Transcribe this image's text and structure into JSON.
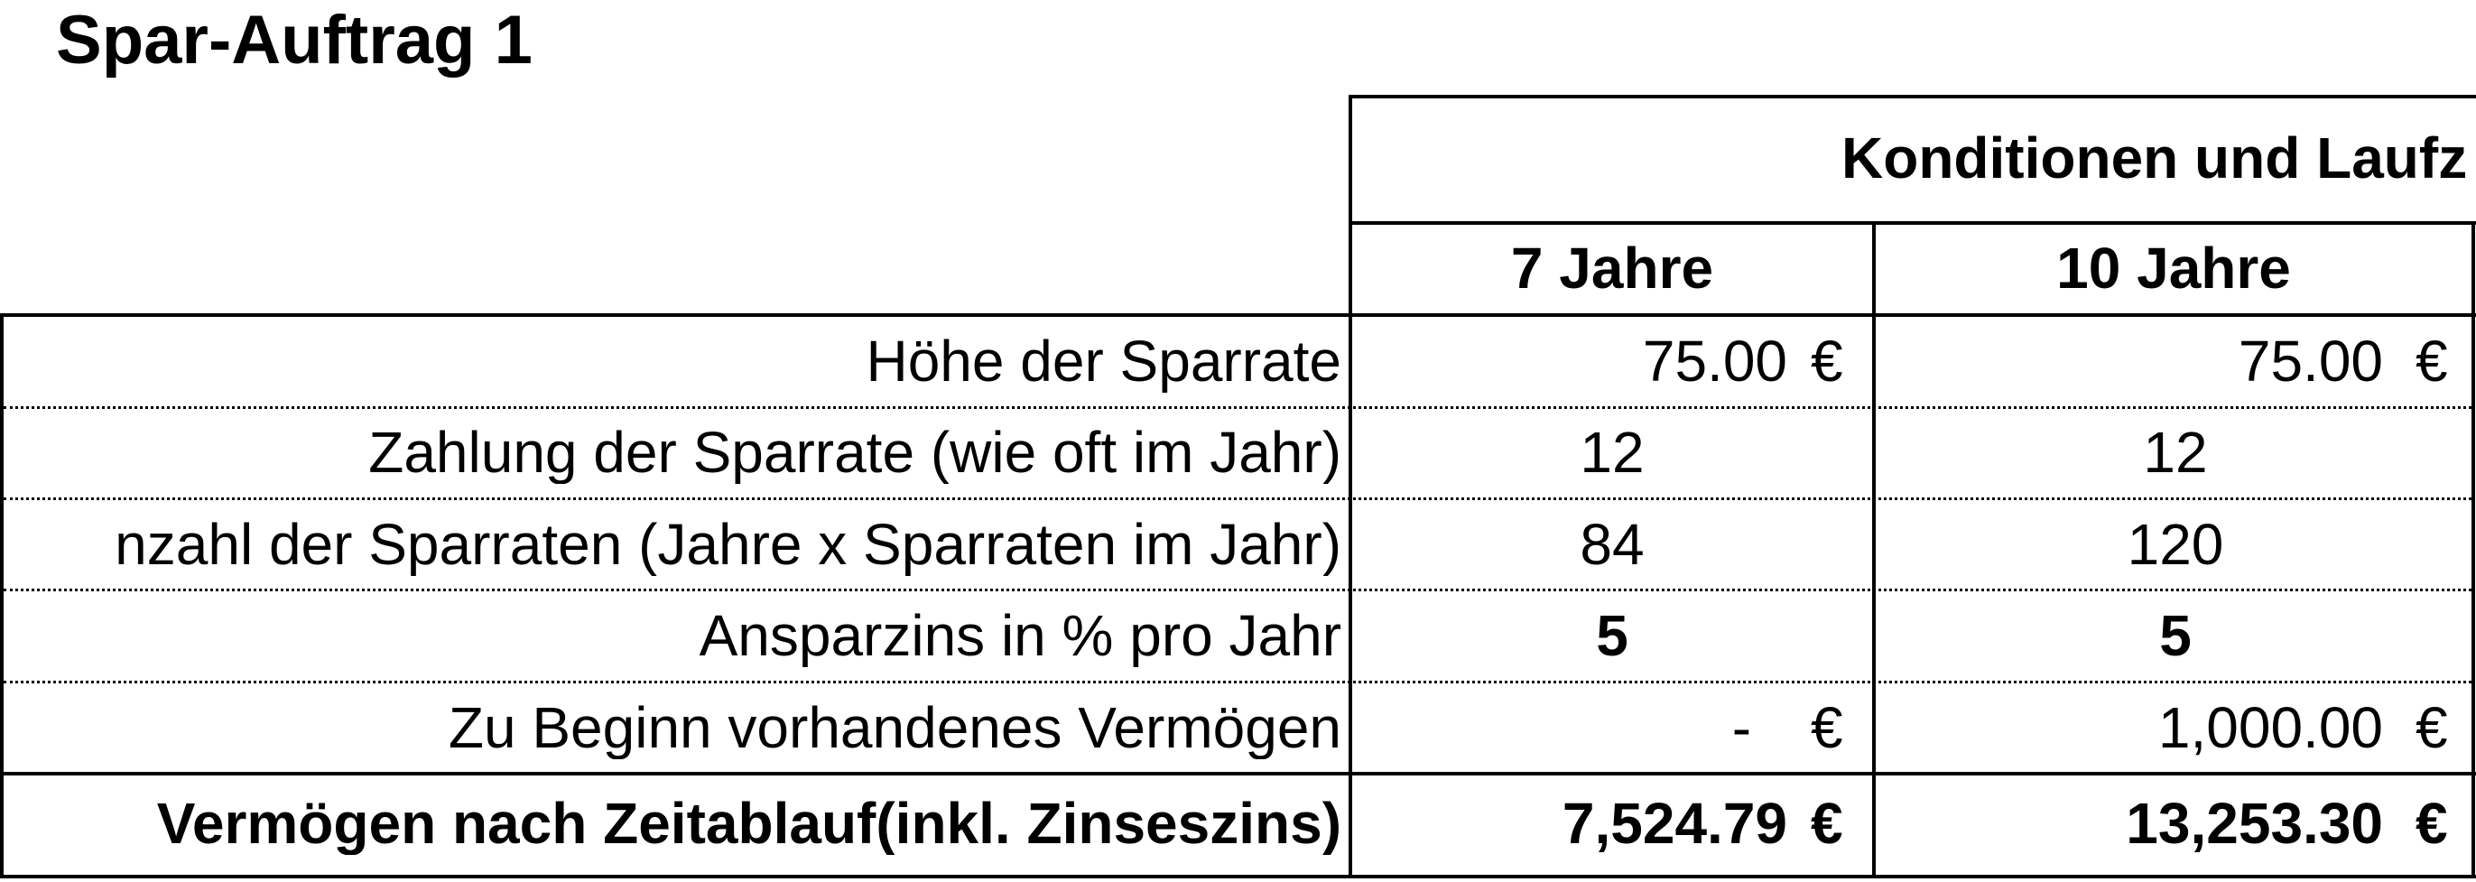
{
  "title": "Spar-Auftrag 1",
  "group_header": "Konditionen und Laufz",
  "columns": [
    "7 Jahre",
    "10 Jahre"
  ],
  "currency_symbol": "€",
  "rows": [
    {
      "label": "Höhe der Sparrate",
      "values": [
        "75.00",
        "75.00"
      ],
      "currency": true,
      "bold": false
    },
    {
      "label": "Zahlung der Sparrate (wie oft im Jahr)",
      "values": [
        "12",
        "12"
      ],
      "currency": false,
      "bold": false
    },
    {
      "label": "nzahl der Sparraten (Jahre x Sparraten im Jahr)",
      "values": [
        "84",
        "120"
      ],
      "currency": false,
      "bold": false
    },
    {
      "label": "Ansparzins in % pro Jahr",
      "values": [
        "5",
        "5"
      ],
      "currency": false,
      "bold": true
    },
    {
      "label": "Zu Beginn vorhandenes Vermögen",
      "values": [
        "-",
        "1,000.00"
      ],
      "currency": true,
      "bold": false
    }
  ],
  "total": {
    "label": "Vermögen nach Zeitablauf(inkl. Zinseszins)",
    "values": [
      "7,524.79",
      "13,253.30"
    ]
  }
}
